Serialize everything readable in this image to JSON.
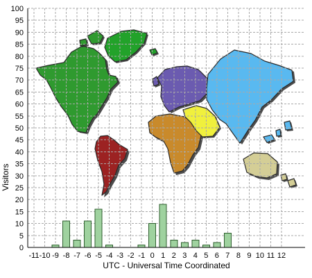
{
  "chart_data": {
    "type": "bar",
    "title": "",
    "xlabel": "UTC - Universal Time Coordinated",
    "ylabel": "Visitors",
    "categories": [
      "-11",
      "-10",
      "-9",
      "-8",
      "-7",
      "-6",
      "-5",
      "-4",
      "-3",
      "-2",
      "-1",
      "0",
      "1",
      "2",
      "3",
      "4",
      "5",
      "6",
      "7",
      "8",
      "9",
      "10",
      "11",
      "12"
    ],
    "values": [
      0,
      0,
      1,
      11,
      3,
      11,
      16,
      1,
      0,
      0,
      1,
      10,
      18,
      3,
      2,
      3,
      1,
      2,
      6,
      0,
      0,
      0,
      0,
      0
    ],
    "ylim": [
      0,
      100
    ],
    "yticks": [
      0,
      5,
      10,
      15,
      20,
      25,
      30,
      35,
      40,
      45,
      50,
      55,
      60,
      65,
      70,
      75,
      80,
      85,
      90,
      95,
      100
    ],
    "grid": true,
    "legend": "none",
    "bar_color": "#9fd29f",
    "background_image": "world-map",
    "colors": {
      "north_america": "#2f9a2f",
      "greenland": "#22a22a",
      "south_america": "#9c2222",
      "europe": "#6b5bb0",
      "africa": "#c98a2b",
      "middle_east": "#f0f03d",
      "asia": "#59b9f0",
      "australia": "#d4ce96"
    }
  }
}
